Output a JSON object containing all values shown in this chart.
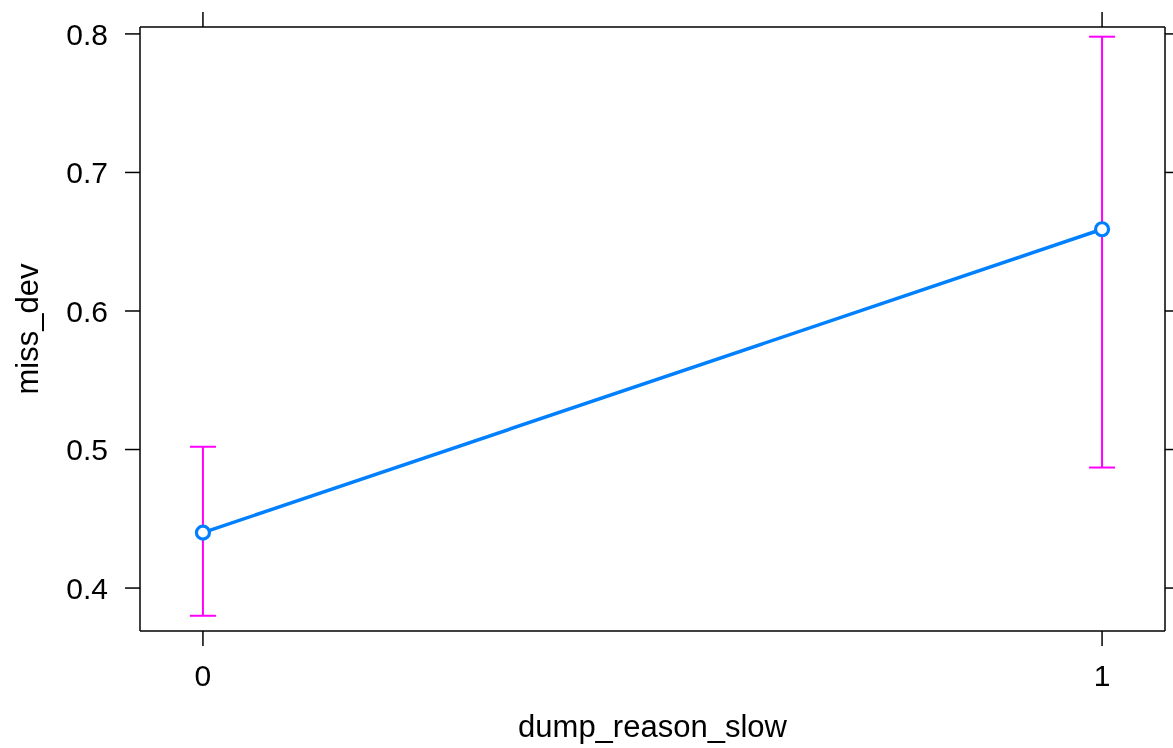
{
  "chart_data": {
    "type": "line",
    "xlabel": "dump_reason_slow",
    "ylabel": "miss_dev",
    "x": [
      0,
      1
    ],
    "values": [
      0.44,
      0.659
    ],
    "color": "#0080ff",
    "errors": [
      [
        0.38,
        0.502
      ],
      [
        0.487,
        0.798
      ]
    ],
    "xlim": [
      -0.07,
      1.07
    ],
    "xticks": [
      0,
      1
    ],
    "ylim": [
      0.369,
      0.805
    ],
    "yticks": [
      0.4,
      0.5,
      0.6,
      0.7,
      0.8
    ],
    "marker": "circle",
    "line_style": "solid"
  }
}
